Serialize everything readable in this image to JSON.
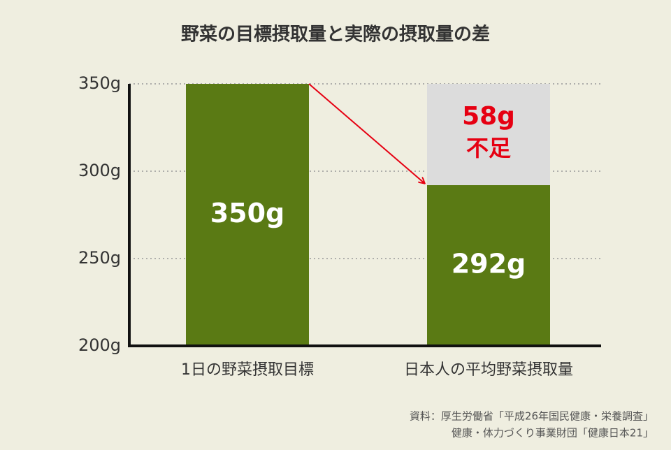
{
  "chart_data": {
    "type": "bar",
    "title": "野菜の目標摂取量と実際の摂取量の差",
    "categories": [
      "1日の野菜摂取目標",
      "日本人の平均野菜摂取量"
    ],
    "values": [
      350,
      292
    ],
    "value_labels": [
      "350g",
      "292g"
    ],
    "color": "#5a7a14",
    "ylim": [
      200,
      350
    ],
    "yticks": [
      {
        "value": 200,
        "label": "200g"
      },
      {
        "value": 250,
        "label": "250g"
      },
      {
        "value": 300,
        "label": "300g"
      },
      {
        "value": 350,
        "label": "350g"
      }
    ],
    "grid": true,
    "shortfall": {
      "value": 58,
      "label": "58g",
      "text": "不足",
      "color": "#e60012"
    },
    "source": [
      "資料：厚生労働省「平成26年国民健康・栄養調査」",
      "健康・体力づくり事業財団「健康日本21」"
    ]
  }
}
